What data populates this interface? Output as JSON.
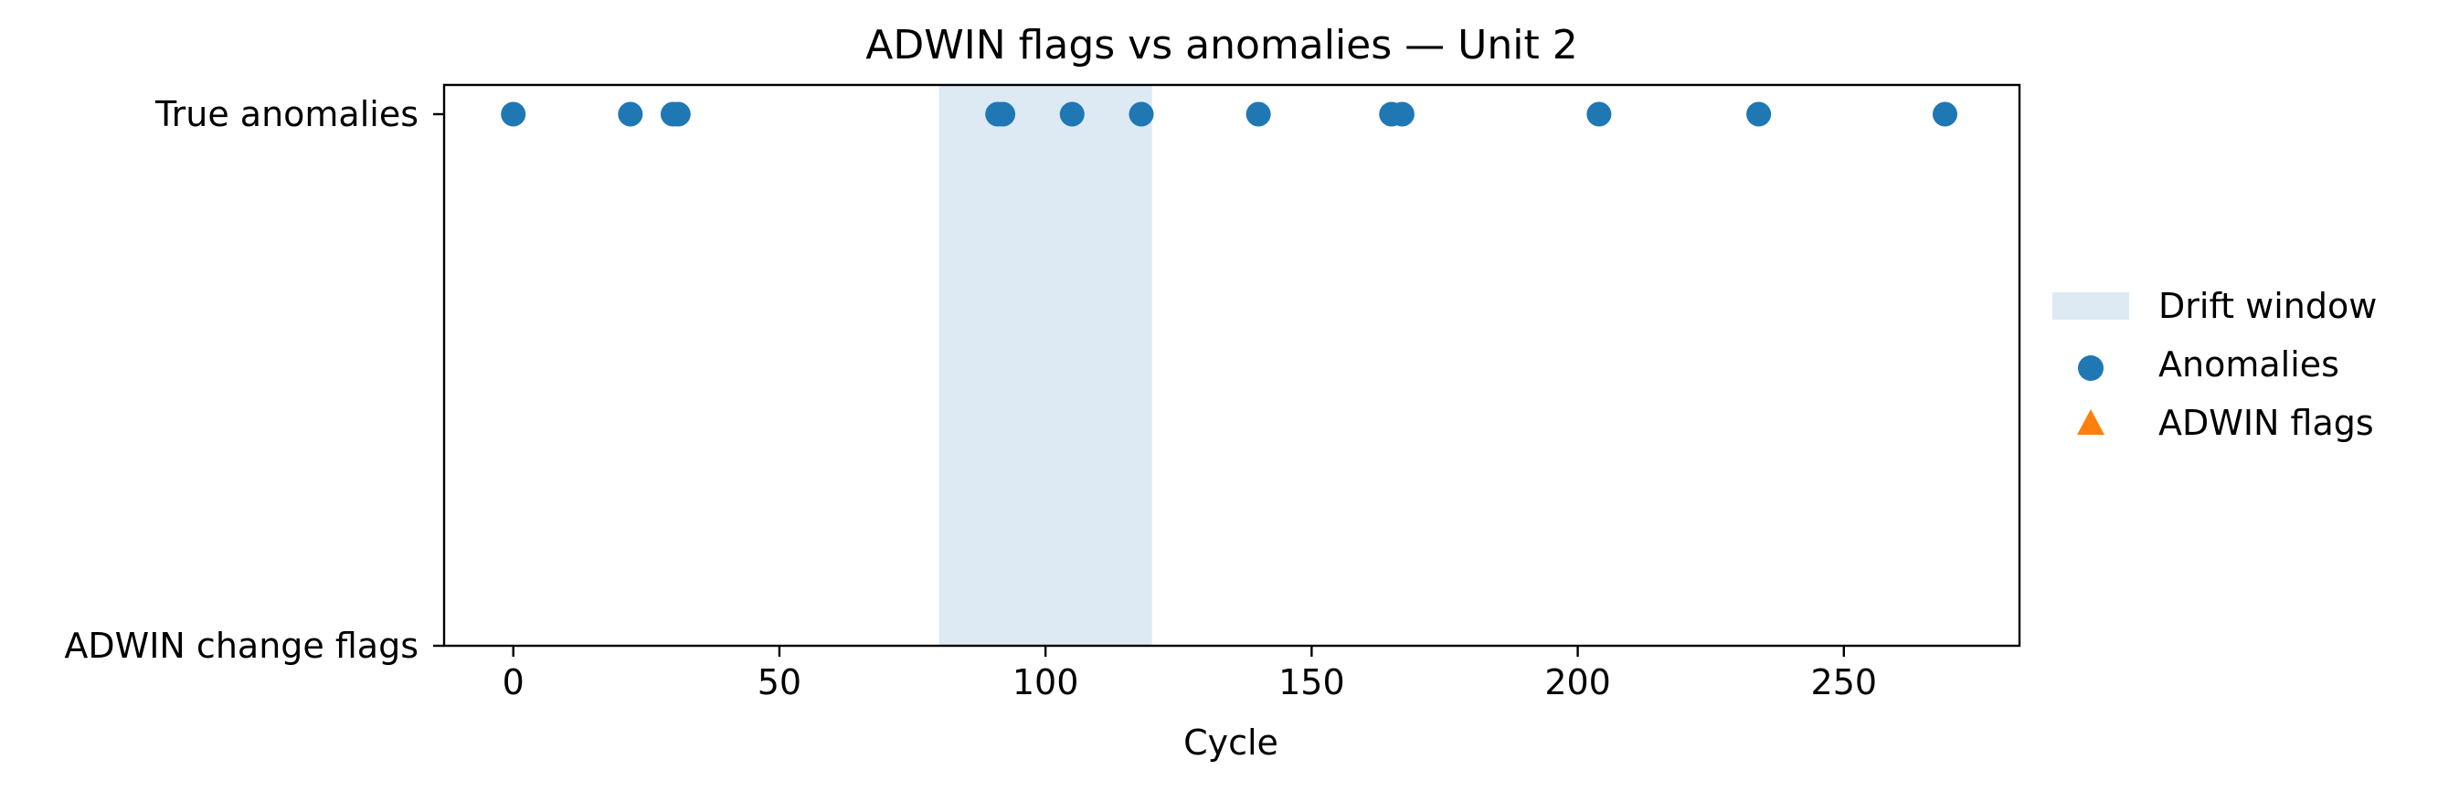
{
  "chart_data": {
    "type": "scatter",
    "title": "ADWIN flags vs anomalies — Unit 2",
    "xlabel": "Cycle",
    "ylabel": "",
    "xlim": [
      -13,
      283
    ],
    "xticks": [
      0,
      50,
      100,
      150,
      200,
      250
    ],
    "ycategories": [
      "ADWIN change flags",
      "True anomalies"
    ],
    "drift_window": {
      "label": "Drift window",
      "x": [
        80,
        120
      ],
      "color": "#dde9f3"
    },
    "series": [
      {
        "name": "Anomalies",
        "marker": "circle",
        "color": "#1f77b4",
        "row": "True anomalies",
        "x": [
          0,
          22,
          30,
          31,
          91,
          92,
          105,
          118,
          140,
          165,
          167,
          204,
          234,
          269
        ]
      },
      {
        "name": "ADWIN flags",
        "marker": "triangle",
        "color": "#ff7f0e",
        "row": "ADWIN change flags",
        "x": []
      }
    ],
    "grid": false,
    "legend_position": "right, outside plot"
  }
}
